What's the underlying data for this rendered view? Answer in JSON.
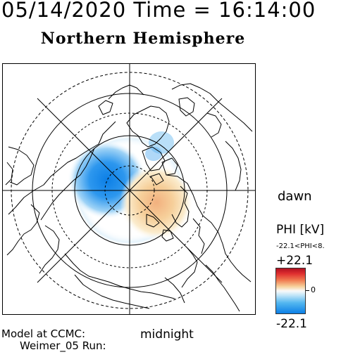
{
  "header": {
    "time_title": "05/14/2020 Time = 16:14:00",
    "hemisphere_title": "Northern Hemisphere"
  },
  "map": {
    "projection": "polar",
    "dawn_label": "dawn",
    "midnight_label": "midnight"
  },
  "legend": {
    "phi_title": "PHI [kV]",
    "phi_range": "-22.1<PHI<8.",
    "max_label": "+22.1",
    "zero_label": "0",
    "min_label": "-22.1",
    "colors": {
      "positive": "#e03030",
      "neutral": "#fafafa",
      "negative": "#0c7fe6"
    }
  },
  "footer": {
    "model_label": "Model at CCMC:",
    "run_label": "Weimer_05 Run:"
  }
}
